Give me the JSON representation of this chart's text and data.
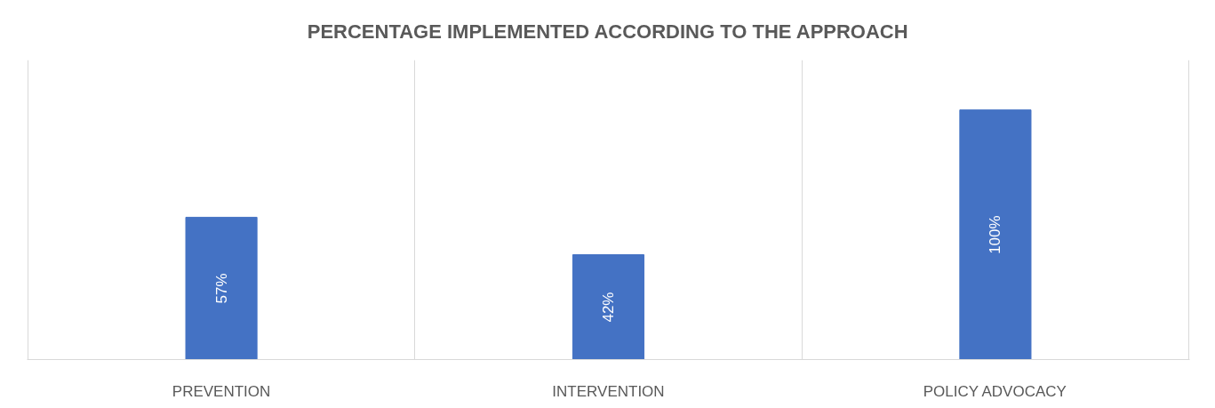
{
  "chart_data": {
    "type": "bar",
    "title": "PERCENTAGE IMPLEMENTED ACCORDING TO THE APPROACH",
    "categories": [
      "PREVENTION",
      "INTERVENTION",
      "POLICY ADVOCACY"
    ],
    "values": [
      57,
      42,
      100
    ],
    "color": "#4472c4",
    "value_labels": [
      "57%",
      "42%",
      "100%"
    ],
    "ylim": [
      0,
      120
    ],
    "grid": "x",
    "tick_labels": "x"
  }
}
